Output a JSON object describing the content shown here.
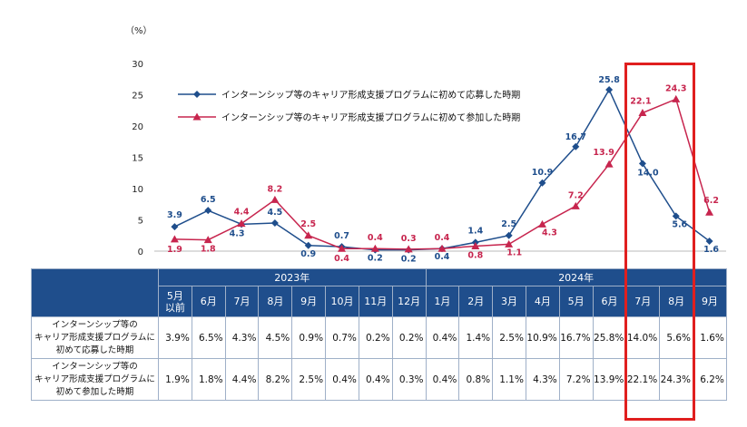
{
  "chart_data": {
    "type": "line",
    "ylabel": "（%）",
    "ylim": [
      0,
      30
    ],
    "yticks": [
      0,
      5,
      10,
      15,
      20,
      25,
      30
    ],
    "categories": [
      "5月以前",
      "6月",
      "7月",
      "8月",
      "9月",
      "10月",
      "11月",
      "12月",
      "1月",
      "2月",
      "3月",
      "4月",
      "5月",
      "6月",
      "7月",
      "8月",
      "9月"
    ],
    "years": [
      {
        "label": "2023年",
        "span": 8
      },
      {
        "label": "2024年",
        "span": 9
      }
    ],
    "series": [
      {
        "name": "インターンシップ等のキャリア形成支援プログラムに初めて応募した時期",
        "color": "#1f4e8c",
        "marker": "diamond",
        "values": [
          3.9,
          6.5,
          4.3,
          4.5,
          0.9,
          0.7,
          0.2,
          0.2,
          0.4,
          1.4,
          2.5,
          10.9,
          16.7,
          25.8,
          14.0,
          5.6,
          1.6
        ],
        "labels": [
          "3.9",
          "6.5",
          "4.3",
          "4.5",
          "0.9",
          "0.7",
          "0.2",
          "0.2",
          "0.4",
          "1.4",
          "2.5",
          "10.9",
          "16.7",
          "25.8",
          "14.0",
          "5.6",
          "1.6"
        ]
      },
      {
        "name": "インターンシップ等のキャリア形成支援プログラムに初めて参加した時期",
        "color": "#c7254e",
        "marker": "triangle",
        "values": [
          1.9,
          1.8,
          4.4,
          8.2,
          2.5,
          0.4,
          0.4,
          0.3,
          0.4,
          0.8,
          1.1,
          4.3,
          7.2,
          13.9,
          22.1,
          24.3,
          6.2
        ],
        "labels": [
          "1.9",
          "1.8",
          "4.4",
          "8.2",
          "2.5",
          "0.4",
          "0.4",
          "0.3",
          "0.4",
          "0.8",
          "1.1",
          "4.3",
          "7.2",
          "13.9",
          "22.1",
          "24.3",
          "6.2"
        ]
      }
    ],
    "table": {
      "month_headers": [
        "5月\n以前",
        "6月",
        "7月",
        "8月",
        "9月",
        "10月",
        "11月",
        "12月",
        "1月",
        "2月",
        "3月",
        "4月",
        "5月",
        "6月",
        "7月",
        "8月",
        "9月"
      ],
      "rows": [
        {
          "label": "インターンシップ等の\nキャリア形成支援プログラムに\n初めて応募した時期",
          "cells": [
            "3.9%",
            "6.5%",
            "4.3%",
            "4.5%",
            "0.9%",
            "0.7%",
            "0.2%",
            "0.2%",
            "0.4%",
            "1.4%",
            "2.5%",
            "10.9%",
            "16.7%",
            "25.8%",
            "14.0%",
            "5.6%",
            "1.6%"
          ]
        },
        {
          "label": "インターンシップ等の\nキャリア形成支援プログラムに\n初めて参加した時期",
          "cells": [
            "1.9%",
            "1.8%",
            "4.4%",
            "8.2%",
            "2.5%",
            "0.4%",
            "0.4%",
            "0.3%",
            "0.4%",
            "0.8%",
            "1.1%",
            "4.3%",
            "7.2%",
            "13.9%",
            "22.1%",
            "24.3%",
            "6.2%"
          ]
        }
      ]
    },
    "highlight": {
      "color": "#e01f1f",
      "categories": [
        "7月",
        "8月",
        "9月"
      ],
      "series_scope": "2024年"
    }
  }
}
